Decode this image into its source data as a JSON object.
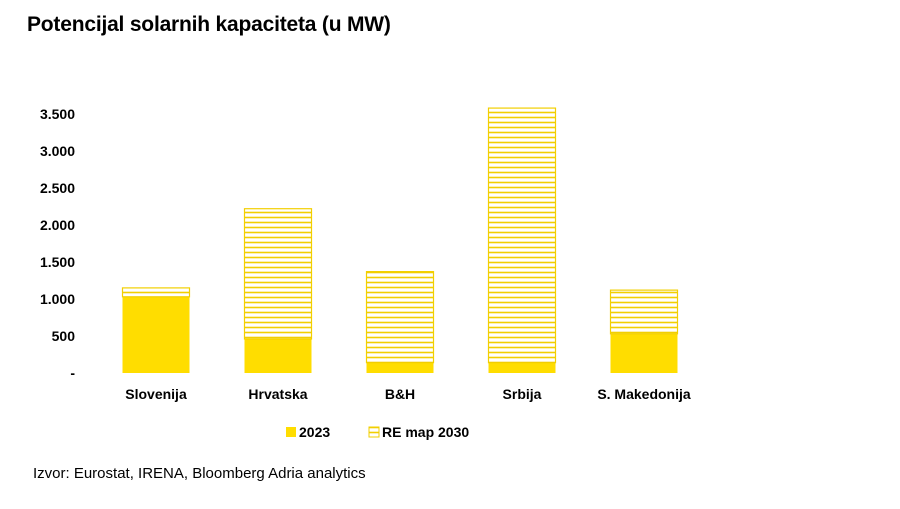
{
  "title": "Potencijal solarnih kapaciteta (u MW)",
  "source": "Izvor: Eurostat, IRENA, Bloomberg Adria analytics",
  "colors": {
    "fill_2023": "#FFDD00",
    "hatch_2030": "#F2CF00"
  },
  "chart_data": {
    "type": "bar",
    "stacked": true,
    "title": "Potencijal solarnih kapaciteta (u MW)",
    "categories": [
      "Slovenija",
      "Hrvatska",
      "B&H",
      "Srbija",
      "S. Makedonija"
    ],
    "series": [
      {
        "name": "2023",
        "style": "solid",
        "values": [
          1030,
          460,
          140,
          140,
          530
        ]
      },
      {
        "name": "RE map 2030",
        "style": "hatched",
        "values": [
          120,
          1760,
          1230,
          3440,
          590
        ]
      }
    ],
    "yticks": [
      0,
      500,
      1000,
      1500,
      2000,
      2500,
      3000,
      3500
    ],
    "ytick_labels": [
      "-",
      "500",
      "1.000",
      "1.500",
      "2.000",
      "2.500",
      "3.000",
      "3.500"
    ],
    "ylim": [
      0,
      3500
    ],
    "grid": false,
    "legend_position": "bottom"
  }
}
